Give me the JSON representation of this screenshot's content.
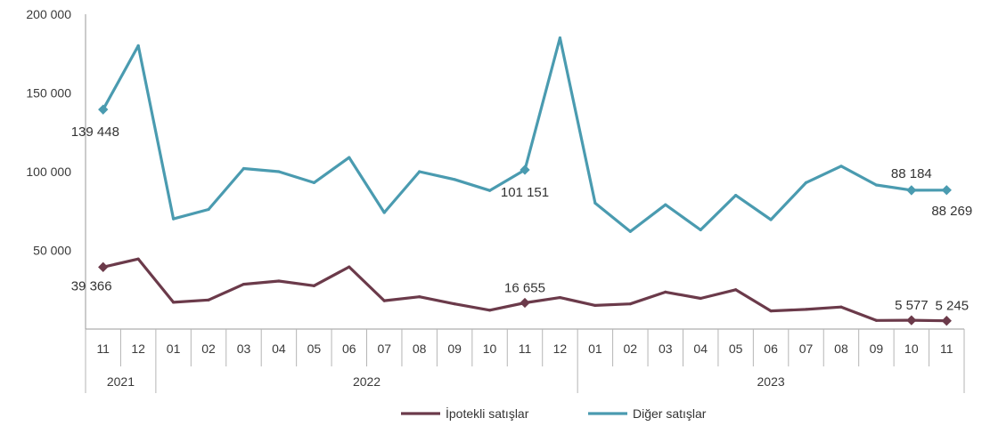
{
  "chart_data": {
    "type": "line",
    "title": "",
    "xlabel": "",
    "ylabel": "",
    "ylim": [
      0,
      200000
    ],
    "y_ticks": [
      "200 000",
      "150 000",
      "100 000",
      "50 000"
    ],
    "y_tick_values": [
      200000,
      150000,
      100000,
      50000
    ],
    "grid": false,
    "legend_position": "bottom",
    "categories": [
      "11",
      "12",
      "01",
      "02",
      "03",
      "04",
      "05",
      "06",
      "07",
      "08",
      "09",
      "10",
      "11",
      "12",
      "01",
      "02",
      "03",
      "04",
      "05",
      "06",
      "07",
      "08",
      "09",
      "10",
      "11"
    ],
    "year_groups": [
      {
        "label": "2021",
        "start": 0,
        "end": 1
      },
      {
        "label": "2022",
        "start": 2,
        "end": 13
      },
      {
        "label": "2023",
        "start": 14,
        "end": 24
      }
    ],
    "series": [
      {
        "name": "İpotekli satışlar",
        "color": "#6b3a4a",
        "values": [
          39366,
          44500,
          17000,
          18500,
          28500,
          30500,
          27500,
          39500,
          18000,
          20500,
          16000,
          12000,
          16655,
          20000,
          15000,
          16000,
          23500,
          19500,
          25000,
          11500,
          12500,
          14000,
          5500,
          5577,
          5245
        ],
        "labeled_points": [
          {
            "index": 0,
            "text": "39 366"
          },
          {
            "index": 12,
            "text": "16 655"
          },
          {
            "index": 23,
            "text": "5 577"
          },
          {
            "index": 24,
            "text": "5 245"
          }
        ]
      },
      {
        "name": "Diğer satışlar",
        "color": "#4a9bb0",
        "values": [
          139448,
          180000,
          70000,
          76000,
          102000,
          100000,
          93000,
          109000,
          74000,
          100000,
          95000,
          88000,
          101151,
          185000,
          80000,
          62000,
          79000,
          63000,
          85000,
          69500,
          93000,
          103500,
          91500,
          88184,
          88269
        ],
        "labeled_points": [
          {
            "index": 0,
            "text": "139 448"
          },
          {
            "index": 12,
            "text": "101 151"
          },
          {
            "index": 23,
            "text": "88 184"
          },
          {
            "index": 24,
            "text": "88 269"
          }
        ]
      }
    ]
  }
}
